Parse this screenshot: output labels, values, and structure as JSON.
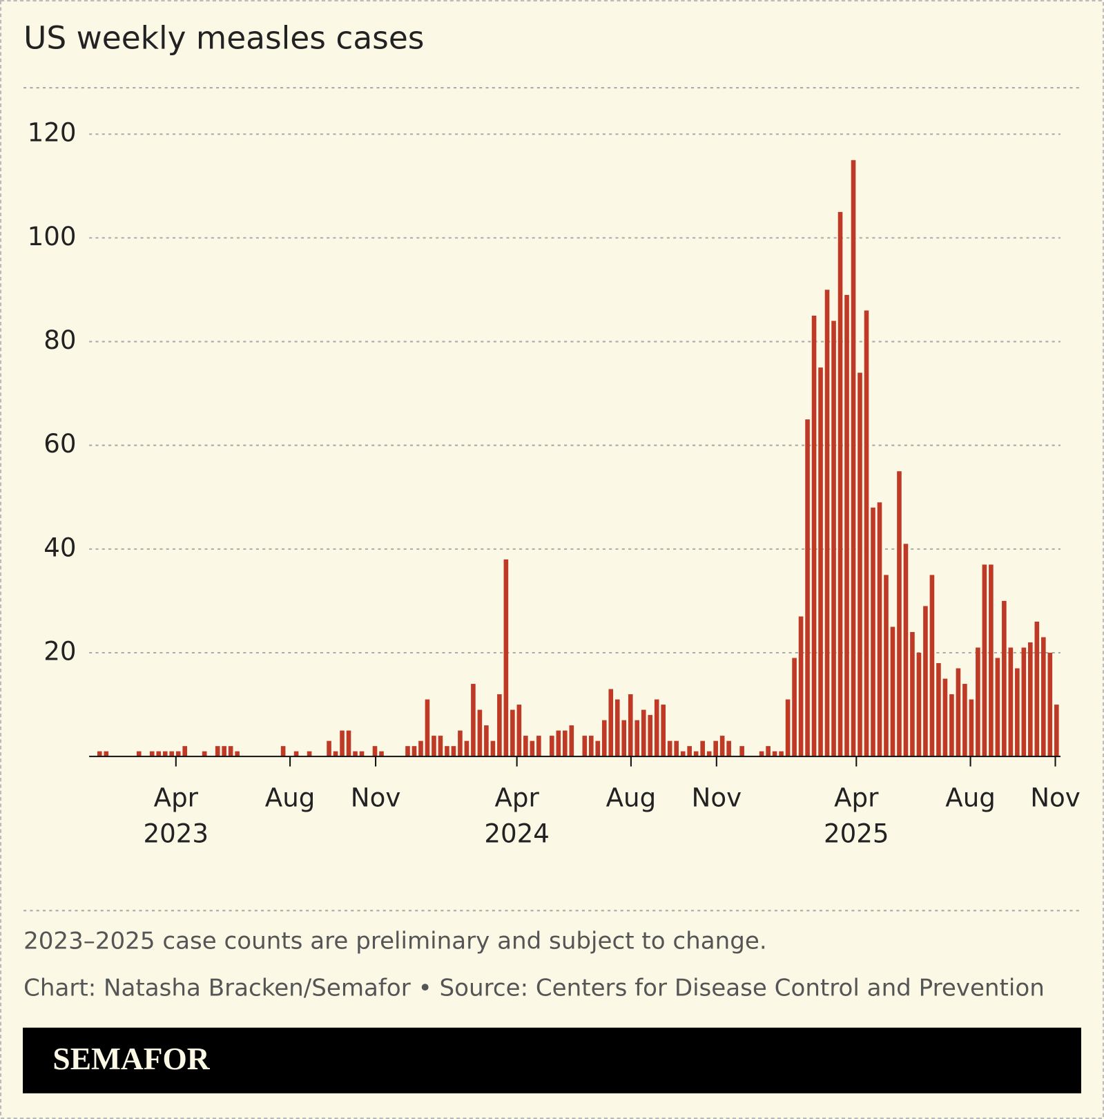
{
  "chart_data": {
    "type": "bar",
    "title": "US weekly measles cases",
    "values": [
      1,
      1,
      0,
      0,
      0,
      0,
      1,
      0,
      1,
      1,
      1,
      1,
      1,
      2,
      0,
      0,
      1,
      0,
      2,
      2,
      2,
      1,
      0,
      0,
      0,
      0,
      0,
      0,
      2,
      0,
      1,
      0,
      1,
      0,
      0,
      3,
      1,
      5,
      5,
      1,
      1,
      0,
      2,
      1,
      0,
      0,
      0,
      2,
      2,
      3,
      11,
      4,
      4,
      2,
      2,
      5,
      3,
      14,
      9,
      6,
      3,
      12,
      38,
      9,
      10,
      4,
      3,
      4,
      0,
      4,
      5,
      5,
      6,
      0,
      4,
      4,
      3,
      7,
      13,
      11,
      7,
      12,
      7,
      9,
      8,
      11,
      10,
      3,
      3,
      1,
      2,
      1,
      3,
      1,
      3,
      4,
      3,
      0,
      2,
      0,
      0,
      1,
      2,
      1,
      1,
      11,
      19,
      27,
      65,
      85,
      75,
      90,
      84,
      105,
      89,
      115,
      74,
      86,
      48,
      49,
      35,
      25,
      55,
      41,
      24,
      20,
      29,
      35,
      18,
      15,
      12,
      17,
      14,
      11,
      21,
      37,
      37,
      19,
      30,
      21,
      17,
      21,
      22,
      26,
      23,
      20,
      10
    ],
    "color": "#bf3a26",
    "xlim": [
      -1.6,
      146.6
    ],
    "xticks": [
      {
        "value": 11.64,
        "label": "Apr"
      },
      {
        "value": 29.05,
        "label": "Aug"
      },
      {
        "value": 42.11,
        "label": "Nov"
      },
      {
        "value": 63.66,
        "label": "Apr"
      },
      {
        "value": 81.07,
        "label": "Aug"
      },
      {
        "value": 94.12,
        "label": "Nov"
      },
      {
        "value": 115.45,
        "label": "Apr"
      },
      {
        "value": 132.86,
        "label": "Aug"
      },
      {
        "value": 145.81,
        "label": "Nov"
      }
    ],
    "year_labels": [
      {
        "value": 11.64,
        "label": "2023"
      },
      {
        "value": 63.66,
        "label": "2024"
      },
      {
        "value": 115.45,
        "label": "2025"
      }
    ],
    "ylim": [
      0,
      120
    ],
    "yticks": [
      20,
      40,
      60,
      80,
      100,
      120
    ],
    "grid": true,
    "note": "2023–2025 case counts are preliminary and subject to change.",
    "credit": "Chart: Natasha Bracken/Semafor • Source: Centers for Disease Control and Prevention",
    "brand": "SEMAFOR"
  }
}
